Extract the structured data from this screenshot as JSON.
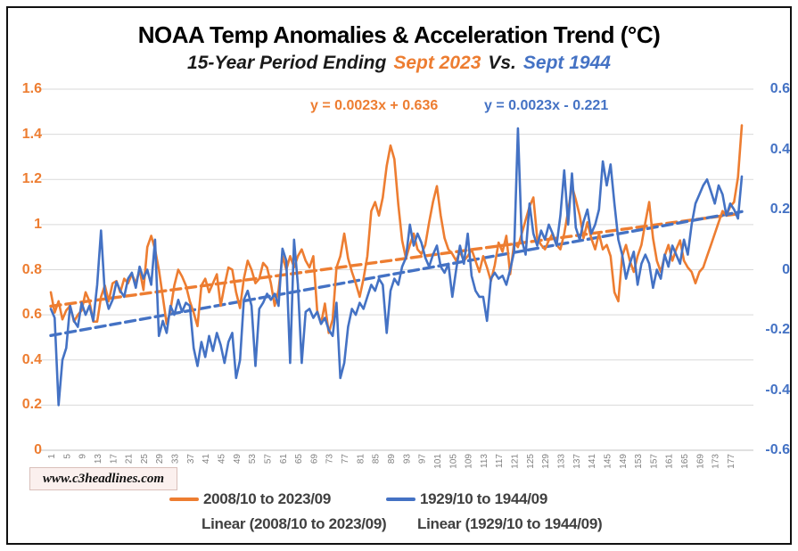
{
  "header": {
    "title": "NOAA Temp Anomalies & Acceleration Trend (°C)",
    "subtitle_prefix": "15-Year Period Ending",
    "subtitle_orange": "Sept 2023",
    "subtitle_middle": "Vs.",
    "subtitle_blue": "Sept 1944"
  },
  "equations": {
    "orange": "y = 0.0023x + 0.636",
    "blue": "y = 0.0023x - 0.221"
  },
  "watermark": "www.c3headlines.com",
  "legend": {
    "series_orange": "2008/10 to 2023/09",
    "series_blue": "1929/10 to 1944/09",
    "trend_orange": "Linear (2008/10 to 2023/09)",
    "trend_blue": "Linear (1929/10 to 1944/09)"
  },
  "colors": {
    "orange": "#ED7D31",
    "blue": "#4472C4",
    "grid": "#D9D9D9",
    "axis_line": "#C0C0C0",
    "xtick_text": "#7F7F7F",
    "legend_text": "#404040"
  },
  "chart_data": {
    "type": "line",
    "title": "NOAA Temp Anomalies & Acceleration Trend (°C)",
    "subtitle": "15-Year Period Ending Sept 2023 Vs. Sept 1944",
    "x_count": 180,
    "x_tick_labels": [
      "1",
      "5",
      "9",
      "13",
      "17",
      "21",
      "25",
      "29",
      "33",
      "37",
      "41",
      "45",
      "49",
      "53",
      "57",
      "61",
      "65",
      "69",
      "73",
      "77",
      "81",
      "85",
      "89",
      "93",
      "97",
      "101",
      "105",
      "109",
      "113",
      "117",
      "121",
      "125",
      "129",
      "133",
      "137",
      "141",
      "145",
      "149",
      "153",
      "157",
      "161",
      "165",
      "169",
      "173",
      "177"
    ],
    "grid": "horizontal",
    "legend_position": "bottom",
    "left_axis": {
      "min": 0,
      "max": 1.6,
      "step": 0.2,
      "ticks": [
        "1.6",
        "1.4",
        "1.2",
        "1",
        "0.8",
        "0.6",
        "0.4",
        "0.2",
        "0"
      ],
      "color": "#ED7D31"
    },
    "right_axis": {
      "min": -0.6,
      "max": 0.6,
      "step": 0.2,
      "ticks": [
        "0.6",
        "0.4",
        "0.2",
        "0",
        "-0.2",
        "-0.4",
        "-0.6"
      ],
      "color": "#4472C4"
    },
    "series": [
      {
        "name": "2008/10 to 2023/09",
        "axis": "left",
        "color": "#ED7D31",
        "values": [
          0.7,
          0.61,
          0.66,
          0.58,
          0.62,
          0.64,
          0.57,
          0.6,
          0.62,
          0.7,
          0.66,
          0.57,
          0.57,
          0.68,
          0.73,
          0.66,
          0.74,
          0.75,
          0.7,
          0.76,
          0.74,
          0.78,
          0.74,
          0.8,
          0.71,
          0.9,
          0.95,
          0.89,
          0.8,
          0.68,
          0.56,
          0.62,
          0.73,
          0.8,
          0.77,
          0.73,
          0.66,
          0.61,
          0.55,
          0.73,
          0.76,
          0.7,
          0.74,
          0.78,
          0.64,
          0.73,
          0.81,
          0.8,
          0.7,
          0.63,
          0.76,
          0.84,
          0.8,
          0.74,
          0.76,
          0.83,
          0.81,
          0.74,
          0.64,
          0.71,
          0.86,
          0.8,
          0.86,
          0.81,
          0.86,
          0.89,
          0.84,
          0.81,
          0.86,
          0.62,
          0.56,
          0.65,
          0.52,
          0.58,
          0.81,
          0.86,
          0.96,
          0.85,
          0.79,
          0.74,
          0.68,
          0.76,
          0.86,
          1.06,
          1.1,
          1.04,
          1.12,
          1.26,
          1.35,
          1.29,
          1.09,
          0.93,
          0.85,
          0.91,
          0.96,
          0.89,
          0.87,
          0.91,
          1.01,
          1.1,
          1.17,
          1.04,
          0.94,
          0.89,
          0.87,
          0.84,
          0.88,
          0.84,
          0.86,
          0.89,
          0.84,
          0.79,
          0.86,
          0.81,
          0.75,
          0.82,
          0.92,
          0.88,
          0.95,
          0.78,
          0.92,
          0.9,
          0.96,
          1.02,
          1.08,
          1.12,
          0.94,
          0.91,
          0.89,
          0.93,
          0.96,
          0.91,
          0.89,
          0.96,
          1.06,
          1.17,
          1.11,
          1.04,
          0.94,
          1.01,
          0.94,
          0.89,
          0.96,
          0.89,
          0.91,
          0.86,
          0.7,
          0.66,
          0.86,
          0.91,
          0.84,
          0.79,
          0.86,
          0.91,
          1.01,
          1.1,
          0.94,
          0.84,
          0.79,
          0.86,
          0.91,
          0.84,
          0.89,
          0.93,
          0.84,
          0.81,
          0.79,
          0.74,
          0.79,
          0.81,
          0.86,
          0.91,
          0.96,
          1.01,
          1.06,
          1.04,
          1.08,
          1.1,
          1.21,
          1.44
        ]
      },
      {
        "name": "1929/10 to 1944/09",
        "axis": "right",
        "color": "#4472C4",
        "values": [
          -0.13,
          -0.16,
          -0.45,
          -0.3,
          -0.26,
          -0.12,
          -0.17,
          -0.19,
          -0.11,
          -0.15,
          -0.12,
          -0.17,
          -0.05,
          0.13,
          -0.08,
          -0.13,
          -0.1,
          -0.04,
          -0.07,
          -0.09,
          -0.03,
          -0.01,
          -0.06,
          0.01,
          -0.03,
          0.0,
          -0.05,
          0.1,
          -0.22,
          -0.17,
          -0.21,
          -0.12,
          -0.15,
          -0.1,
          -0.14,
          -0.11,
          -0.12,
          -0.26,
          -0.32,
          -0.24,
          -0.29,
          -0.22,
          -0.27,
          -0.21,
          -0.25,
          -0.31,
          -0.24,
          -0.21,
          -0.36,
          -0.3,
          -0.1,
          -0.07,
          -0.12,
          -0.32,
          -0.13,
          -0.11,
          -0.08,
          -0.1,
          -0.08,
          -0.12,
          0.07,
          0.03,
          -0.31,
          0.1,
          -0.05,
          -0.31,
          -0.14,
          -0.13,
          -0.16,
          -0.14,
          -0.18,
          -0.16,
          -0.2,
          -0.22,
          -0.11,
          -0.36,
          -0.31,
          -0.19,
          -0.13,
          -0.15,
          -0.11,
          -0.13,
          -0.09,
          -0.05,
          -0.07,
          -0.03,
          -0.05,
          -0.21,
          -0.07,
          -0.03,
          -0.05,
          0.01,
          0.04,
          0.15,
          0.08,
          0.12,
          0.09,
          0.04,
          0.01,
          0.05,
          0.08,
          0.01,
          -0.01,
          0.02,
          -0.09,
          0.0,
          0.08,
          0.02,
          0.12,
          -0.02,
          -0.07,
          -0.09,
          -0.09,
          -0.17,
          -0.03,
          -0.01,
          -0.03,
          -0.02,
          -0.05,
          0.0,
          0.06,
          0.47,
          0.1,
          0.05,
          0.22,
          0.12,
          0.08,
          0.13,
          0.1,
          0.15,
          0.12,
          0.08,
          0.18,
          0.33,
          0.15,
          0.32,
          0.14,
          0.1,
          0.16,
          0.2,
          0.12,
          0.15,
          0.2,
          0.36,
          0.28,
          0.35,
          0.22,
          0.1,
          0.05,
          -0.03,
          0.02,
          0.06,
          -0.05,
          0.02,
          0.05,
          0.02,
          -0.06,
          0.0,
          -0.03,
          0.05,
          0.01,
          0.08,
          0.05,
          0.02,
          0.1,
          0.05,
          0.15,
          0.22,
          0.25,
          0.28,
          0.3,
          0.26,
          0.22,
          0.28,
          0.25,
          0.18,
          0.22,
          0.2,
          0.17,
          0.31
        ]
      }
    ],
    "trendlines": [
      {
        "name": "Linear (2008/10 to 2023/09)",
        "axis": "left",
        "color": "#ED7D31",
        "slope": 0.0023,
        "intercept": 0.636,
        "equation": "y = 0.0023x + 0.636"
      },
      {
        "name": "Linear (1929/10 to 1944/09)",
        "axis": "right",
        "color": "#4472C4",
        "slope": 0.0023,
        "intercept": -0.221,
        "equation": "y = 0.0023x - 0.221"
      }
    ]
  }
}
